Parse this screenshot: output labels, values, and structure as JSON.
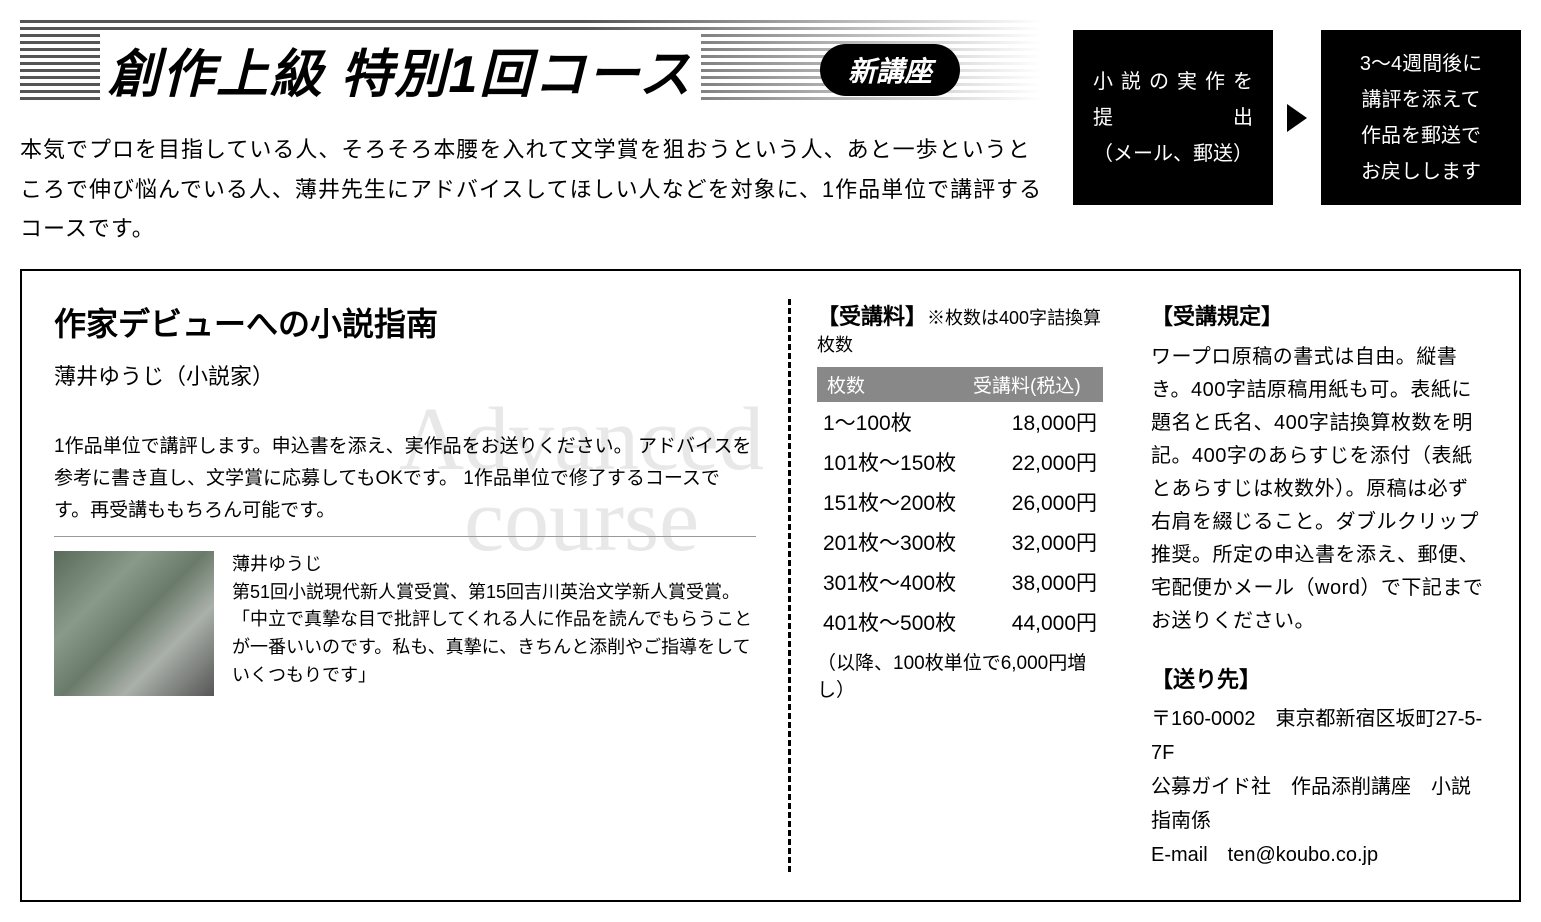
{
  "header": {
    "title": "創作上級 特別1回コース",
    "badge": "新講座",
    "intro": "本気でプロを目指している人、そろそろ本腰を入れて文学賞を狙おうという人、あと一歩というところで伸び悩んでいる人、薄井先生にアドバイスしてほしい人などを対象に、1作品単位で講評するコースです。"
  },
  "flow": {
    "box1": {
      "line1": "小説の実作を",
      "line2": "提出",
      "line3": "（メール、郵送）"
    },
    "box2": {
      "line1": "3～4週間後に",
      "line2": "講評を添えて",
      "line3": "作品を郵送で",
      "line4": "お戻しします"
    }
  },
  "course": {
    "title": "作家デビューへの小説指南",
    "instructor": "薄井ゆうじ（小説家）",
    "description": "1作品単位で講評します。申込書を添え、実作品をお送りください。\nアドバイスを参考に書き直し、文学賞に応募してもOKです。\n1作品単位で修了するコースです。再受講ももちろん可能です。",
    "watermark1": "Advanced",
    "watermark2": "course"
  },
  "profile": {
    "name": "薄井ゆうじ",
    "bio": "第51回小説現代新人賞受賞、第15回吉川英治文学新人賞受賞。\n「中立で真摯な目で批評してくれる人に作品を読んでもらうことが一番いいのです。私も、真摯に、きちんと添削やご指導をしていくつもりです」"
  },
  "fees": {
    "label": "【受講料】",
    "note": "※枚数は400字詰換算枚数",
    "header_col1": "枚数",
    "header_col2": "受講料(税込)",
    "rows": [
      {
        "range": "1～100枚",
        "price": "18,000円"
      },
      {
        "range": "101枚～150枚",
        "price": "22,000円"
      },
      {
        "range": "151枚～200枚",
        "price": "26,000円"
      },
      {
        "range": "201枚～300枚",
        "price": "32,000円"
      },
      {
        "range": "301枚～400枚",
        "price": "38,000円"
      },
      {
        "range": "401枚～500枚",
        "price": "44,000円"
      }
    ],
    "footnote": "（以降、100枚単位で6,000円増し）"
  },
  "rules": {
    "label": "【受講規定】",
    "text": "ワープロ原稿の書式は自由。縦書き。400字詰原稿用紙も可。表紙に題名と氏名、400字詰換算枚数を明記。400字のあらすじを添付（表紙とあらすじは枚数外）。原稿は必ず右肩を綴じること。ダブルクリップ推奨。所定の申込書を添え、郵便、宅配便かメール（word）で下記までお送りください。"
  },
  "address": {
    "label": "【送り先】",
    "line1": "〒160-0002　東京都新宿区坂町27-5-7F",
    "line2": "公募ガイド社　作品添削講座　小説指南係",
    "line3": "E-mail　ten@koubo.co.jp"
  },
  "colors": {
    "black": "#000000",
    "white": "#ffffff",
    "gray_header": "#888888",
    "watermark": "#e8e8e8"
  }
}
